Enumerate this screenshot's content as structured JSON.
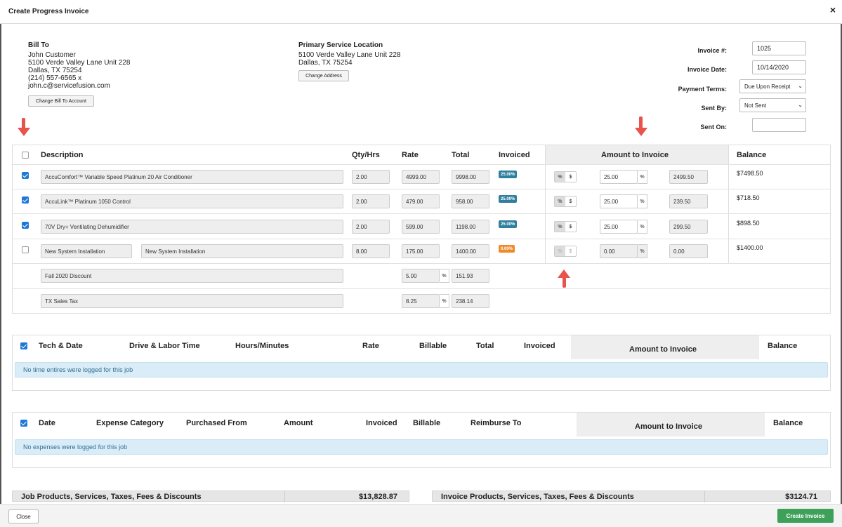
{
  "modal": {
    "title": "Create Progress Invoice",
    "close_glyph": "×"
  },
  "bill_to": {
    "heading": "Bill To",
    "lines": [
      "John Customer",
      "5100 Verde Valley Lane Unit 228",
      "Dallas, TX 75254",
      "(214) 557-6565 x",
      "john.c@servicefusion.com"
    ],
    "button": "Change Bill To Account"
  },
  "service_location": {
    "heading": "Primary Service Location",
    "lines": [
      "5100 Verde Valley Lane Unit 228",
      "Dallas, TX 75254"
    ],
    "button": "Change Address"
  },
  "invoice_meta": {
    "number_label": "Invoice #:",
    "number_value": "1025",
    "date_label": "Invoice Date:",
    "date_value": "10/14/2020",
    "terms_label": "Payment Terms:",
    "terms_value": "Due Upon Receipt",
    "sent_by_label": "Sent By:",
    "sent_by_value": "Not Sent",
    "sent_on_label": "Sent On:",
    "sent_on_value": ""
  },
  "products": {
    "headers": {
      "description": "Description",
      "qty": "Qty/Hrs",
      "rate": "Rate",
      "total": "Total",
      "invoiced": "Invoiced",
      "amount": "Amount to Invoice",
      "balance": "Balance"
    },
    "rows": [
      {
        "checked": true,
        "description": "AccuComfort™ Variable Speed Platinum 20 Air Conditioner",
        "qty": "2.00",
        "rate": "4999.00",
        "total": "9998.00",
        "invoiced": "25.00%",
        "amount": "25.00",
        "amount_unit": "%",
        "amount_value": "2499.50",
        "balance": "$7498.50"
      },
      {
        "checked": true,
        "description": "AccuLink™ Platinum 1050 Control",
        "qty": "2.00",
        "rate": "479.00",
        "total": "958.00",
        "invoiced": "25.00%",
        "amount": "25.00",
        "amount_unit": "%",
        "amount_value": "239.50",
        "balance": "$718.50"
      },
      {
        "checked": true,
        "description": "70V Dry+ Ventilating Dehumidifier",
        "qty": "2.00",
        "rate": "599.00",
        "total": "1198.00",
        "invoiced": "25.00%",
        "amount": "25.00",
        "amount_unit": "%",
        "amount_value": "299.50",
        "balance": "$898.50"
      },
      {
        "checked": false,
        "description": "New System Installation",
        "description2": "New System Installation",
        "qty": "8.00",
        "rate": "175.00",
        "total": "1400.00",
        "invoiced": "0.00%",
        "amount": "0.00",
        "amount_unit": "%",
        "amount_value": "0.00",
        "balance": "$1400.00"
      }
    ],
    "discount": {
      "label": "Fall 2020 Discount",
      "rate": "5.00",
      "unit": "%",
      "total": "151.93"
    },
    "tax": {
      "label": "TX Sales Tax",
      "rate": "8.25",
      "unit": "%",
      "total": "238.14"
    },
    "toggle": {
      "pct": "%",
      "dollar": "$"
    }
  },
  "labor": {
    "headers": {
      "tech": "Tech & Date",
      "drive": "Drive & Labor Time",
      "hours": "Hours/Minutes",
      "rate": "Rate",
      "billable": "Billable",
      "total": "Total",
      "invoiced": "Invoiced",
      "amount": "Amount to Invoice",
      "balance": "Balance"
    },
    "empty": "No time entires were logged for this job"
  },
  "expenses": {
    "headers": {
      "date": "Date",
      "category": "Expense Category",
      "from": "Purchased From",
      "amount": "Amount",
      "invoiced": "Invoiced",
      "billable": "Billable",
      "reimburse": "Reimburse To",
      "amount_to": "Amount to Invoice",
      "balance": "Balance"
    },
    "empty": "No expenses were logged for this job"
  },
  "summary": {
    "job_label": "Job Products, Services, Taxes, Fees & Discounts",
    "job_value": "$13,828.87",
    "invoice_label": "Invoice Products, Services, Taxes, Fees & Discounts",
    "invoice_value": "$3124.71"
  },
  "footer": {
    "close": "Close",
    "create": "Create Invoice"
  },
  "colors": {
    "primary_button": "#3fa05a",
    "annotation_arrow": "#e8534c",
    "badge_blue": "#2f7f9f",
    "badge_orange": "#ef8a2b"
  }
}
